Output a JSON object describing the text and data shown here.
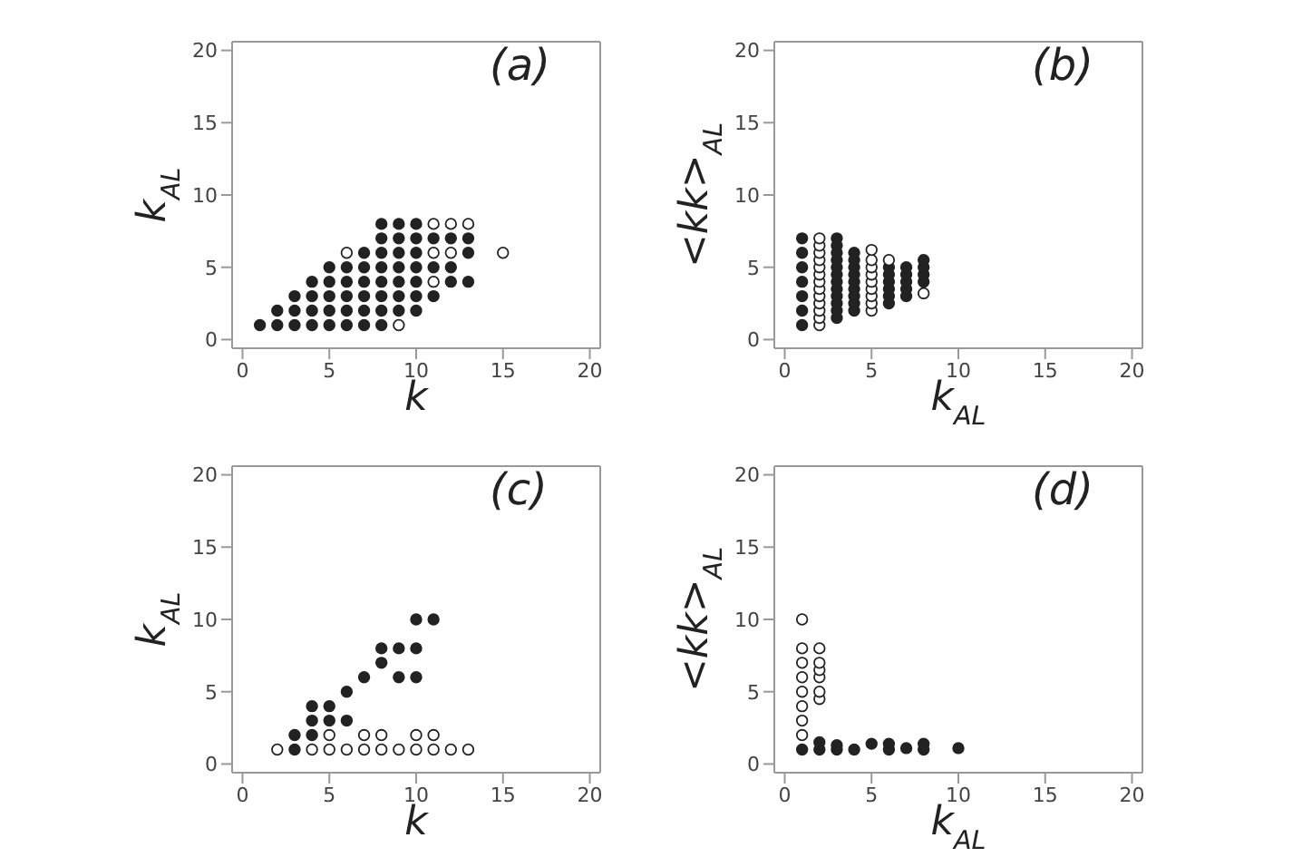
{
  "chart_data": [
    {
      "type": "scatter",
      "title": "(a)",
      "xlabel": "k",
      "ylabel": "k$_{AL}$",
      "xlim": [
        -0.6,
        20.6
      ],
      "ylim": [
        -0.6,
        20.6
      ],
      "xticks": [
        0,
        5,
        10,
        15,
        20
      ],
      "yticks": [
        0,
        5,
        10,
        15,
        20
      ],
      "marker": "circle",
      "series": [
        {
          "color": "#222222",
          "x": [
            1,
            2,
            3,
            4,
            5,
            6,
            7,
            8,
            2,
            3,
            4,
            5,
            6,
            7,
            8,
            9,
            10,
            3,
            4,
            5,
            6,
            7,
            8,
            9,
            10,
            11,
            4,
            5,
            6,
            7,
            8,
            9,
            10,
            12,
            13,
            5,
            6,
            7,
            8,
            9,
            10,
            11,
            12,
            7,
            8,
            9,
            10,
            13,
            8,
            9,
            10,
            11,
            12,
            13,
            8,
            9,
            10
          ],
          "values": [
            1,
            1,
            1,
            1,
            1,
            1,
            1,
            1,
            2,
            2,
            2,
            2,
            2,
            2,
            2,
            2,
            2,
            3,
            3,
            3,
            3,
            3,
            3,
            3,
            3,
            3,
            4,
            4,
            4,
            4,
            4,
            4,
            4,
            4,
            4,
            5,
            5,
            5,
            5,
            5,
            5,
            5,
            5,
            6,
            6,
            6,
            6,
            6,
            7,
            7,
            7,
            7,
            7,
            7,
            8,
            8,
            8
          ]
        },
        {
          "color": "#ffffff",
          "x": [
            9,
            11,
            6,
            11,
            12,
            15,
            11,
            12,
            13
          ],
          "values": [
            1,
            4,
            6,
            6,
            6,
            6,
            8,
            8,
            8
          ]
        }
      ]
    },
    {
      "type": "scatter",
      "title": "(b)",
      "xlabel": "k$_{AL}$",
      "ylabel": "<kk>$_{AL}$",
      "xlim": [
        -0.6,
        20.6
      ],
      "ylim": [
        -0.6,
        20.6
      ],
      "xticks": [
        0,
        5,
        10,
        15,
        20
      ],
      "yticks": [
        0,
        5,
        10,
        15,
        20
      ],
      "marker": "circle",
      "series": [
        {
          "color": "#222222",
          "x": [
            1,
            1,
            1,
            1,
            1,
            1,
            1,
            3,
            3,
            3,
            3,
            3,
            3,
            3,
            3,
            3,
            3,
            3,
            3,
            4,
            4,
            4,
            4,
            4,
            4,
            4,
            4,
            4,
            6,
            6,
            6,
            6,
            6,
            6,
            7,
            7,
            7,
            7,
            7,
            8,
            8,
            8,
            8
          ],
          "values": [
            1,
            2,
            3,
            4,
            5,
            6,
            7,
            1.5,
            2,
            2.5,
            3,
            3.5,
            4,
            4.5,
            5,
            5.5,
            6,
            6.5,
            7,
            2,
            2.5,
            3,
            3.5,
            4,
            4.5,
            5,
            5.5,
            6,
            2.5,
            3,
            3.5,
            4,
            4.5,
            5,
            3,
            3.5,
            4,
            4.5,
            5,
            4,
            4.5,
            5,
            5.5
          ]
        },
        {
          "color": "#ffffff",
          "x": [
            2,
            2,
            2,
            2,
            2,
            2,
            2,
            2,
            2,
            2,
            2,
            2,
            2,
            5,
            5,
            5,
            5,
            5,
            5,
            5,
            5,
            5,
            6,
            8
          ],
          "values": [
            1,
            1.5,
            2,
            2.5,
            3,
            3.5,
            4,
            4.5,
            5,
            5.5,
            6,
            6.5,
            7,
            2,
            2.5,
            3,
            3.5,
            4,
            4.5,
            5,
            5.5,
            6.2,
            5.5,
            3.2
          ]
        }
      ]
    },
    {
      "type": "scatter",
      "title": "(c)",
      "xlabel": "k",
      "ylabel": "k$_{AL}$",
      "xlim": [
        -0.6,
        20.6
      ],
      "ylim": [
        -0.6,
        20.6
      ],
      "xticks": [
        0,
        5,
        10,
        15,
        20
      ],
      "yticks": [
        0,
        5,
        10,
        15,
        20
      ],
      "marker": "circle",
      "series": [
        {
          "color": "#ffffff",
          "x": [
            2,
            4,
            5,
            6,
            7,
            8,
            9,
            10,
            11,
            12,
            13,
            5,
            7,
            8,
            10,
            11
          ],
          "values": [
            1,
            1,
            1,
            1,
            1,
            1,
            1,
            1,
            1,
            1,
            1,
            2,
            2,
            2,
            2,
            2
          ]
        },
        {
          "color": "#222222",
          "x": [
            3,
            3,
            4,
            4,
            4,
            5,
            5,
            6,
            6,
            7,
            8,
            8,
            9,
            9,
            10,
            10,
            10,
            11
          ],
          "values": [
            1,
            2,
            2,
            3,
            4,
            3,
            4,
            3,
            5,
            6,
            7,
            8,
            6,
            8,
            6,
            8,
            10,
            10
          ]
        }
      ]
    },
    {
      "type": "scatter",
      "title": "(d)",
      "xlabel": "k$_{AL}$",
      "ylabel": "<kk>$_{AL}$",
      "xlim": [
        -0.6,
        20.6
      ],
      "ylim": [
        -0.6,
        20.6
      ],
      "xticks": [
        0,
        5,
        10,
        15,
        20
      ],
      "yticks": [
        0,
        5,
        10,
        15,
        20
      ],
      "marker": "circle",
      "series": [
        {
          "color": "#ffffff",
          "x": [
            1,
            1,
            1,
            1,
            1,
            1,
            1,
            1,
            2,
            2,
            2,
            2,
            2,
            2
          ],
          "values": [
            2,
            3,
            4,
            5,
            6,
            7,
            8,
            10,
            4.5,
            5,
            6,
            6.5,
            7,
            8
          ]
        },
        {
          "color": "#222222",
          "x": [
            1,
            2,
            2,
            3,
            3,
            4,
            5,
            6,
            6,
            7,
            8,
            8,
            10
          ],
          "values": [
            1,
            1,
            1.5,
            1,
            1.3,
            1,
            1.4,
            1,
            1.4,
            1.1,
            1,
            1.4,
            1.1
          ]
        }
      ]
    }
  ]
}
